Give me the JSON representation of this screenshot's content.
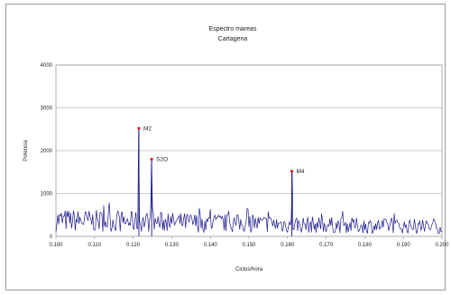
{
  "chart_data": {
    "type": "line",
    "title": "Espectro mareas",
    "subtitle": "Cartagena",
    "xlabel": "Ciclos/hora",
    "ylabel": "Potencia",
    "xlim": [
      0.1,
      0.2
    ],
    "ylim": [
      0,
      4000
    ],
    "x_ticks": [
      "0.100",
      "0.110",
      "0.120",
      "0.130",
      "0.140",
      "0.150",
      "0.160",
      "0.170",
      "0.180",
      "0.190",
      "0.200"
    ],
    "y_ticks": [
      "0",
      "1000",
      "2000",
      "3000",
      "4000"
    ],
    "grid": "horizontal",
    "line_color": "#1a1a8c",
    "marker_color": "#d42020",
    "background_noise_level": 430,
    "background_noise_trend_end": 250,
    "peaks": [
      {
        "label": "M2",
        "x": 0.1215,
        "y": 2520
      },
      {
        "label": "S2O",
        "x": 0.1248,
        "y": 1800
      },
      {
        "label": "M4",
        "x": 0.1611,
        "y": 1520
      }
    ]
  }
}
